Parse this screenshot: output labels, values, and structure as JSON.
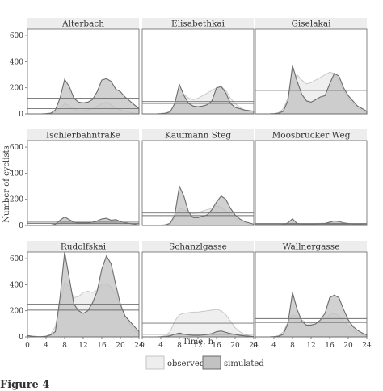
{
  "figure": {
    "ylabel": "Number of cyclists",
    "xlabel": "Time, h",
    "caption_fragment": "Figure 4"
  },
  "legend": {
    "observed_label": "observed",
    "simulated_label": "simulated"
  },
  "colors": {
    "observed_fill": "#eeeeee",
    "observed_stroke": "#c4c4c4",
    "simulated_fill": "#c2c2c2",
    "simulated_stroke": "#6b6b6b",
    "mean_line": "#707070",
    "panel_bg": "#ffffff",
    "axis": "#666666"
  },
  "chart_data": {
    "type": "area",
    "layout": "3x3 small multiples, shared axes",
    "x_ticks": [
      0,
      4,
      8,
      12,
      16,
      20,
      24
    ],
    "y_ticks": [
      0,
      200,
      400,
      600
    ],
    "xlim": [
      0,
      24
    ],
    "ylim": [
      0,
      650
    ],
    "series_names": [
      "observed",
      "simulated"
    ],
    "legend_position": "bottom-center",
    "grid": false,
    "panels": [
      {
        "title": "Alterbach",
        "x": [
          0,
          1,
          2,
          3,
          4,
          5,
          6,
          7,
          8,
          9,
          10,
          11,
          12,
          13,
          14,
          15,
          16,
          17,
          18,
          19,
          20,
          21,
          22,
          23,
          24
        ],
        "observed": [
          0,
          0,
          0,
          0,
          2,
          5,
          15,
          40,
          80,
          60,
          35,
          25,
          25,
          30,
          40,
          60,
          80,
          90,
          70,
          45,
          30,
          20,
          12,
          6,
          2
        ],
        "simulated": [
          0,
          0,
          0,
          0,
          2,
          5,
          30,
          120,
          265,
          210,
          120,
          90,
          85,
          90,
          110,
          170,
          260,
          270,
          250,
          190,
          170,
          130,
          100,
          70,
          40
        ],
        "mean_observed": 40,
        "mean_simulated": 120
      },
      {
        "title": "Elisabethkai",
        "x": [
          0,
          1,
          2,
          3,
          4,
          5,
          6,
          7,
          8,
          9,
          10,
          11,
          12,
          13,
          14,
          15,
          16,
          17,
          18,
          19,
          20,
          21,
          22,
          23,
          24
        ],
        "observed": [
          0,
          0,
          0,
          0,
          2,
          5,
          20,
          60,
          130,
          150,
          120,
          110,
          120,
          140,
          160,
          180,
          200,
          210,
          180,
          120,
          80,
          50,
          30,
          15,
          5
        ],
        "simulated": [
          0,
          0,
          0,
          0,
          2,
          5,
          15,
          80,
          225,
          140,
          80,
          60,
          55,
          60,
          70,
          100,
          200,
          210,
          160,
          80,
          50,
          40,
          30,
          25,
          20
        ],
        "mean_observed": 80,
        "mean_simulated": 95
      },
      {
        "title": "Giselakai",
        "x": [
          0,
          1,
          2,
          3,
          4,
          5,
          6,
          7,
          8,
          9,
          10,
          11,
          12,
          13,
          14,
          15,
          16,
          17,
          18,
          19,
          20,
          21,
          22,
          23,
          24
        ],
        "observed": [
          0,
          0,
          0,
          0,
          3,
          10,
          40,
          120,
          260,
          300,
          260,
          230,
          240,
          260,
          280,
          300,
          320,
          310,
          250,
          180,
          120,
          80,
          50,
          25,
          10
        ],
        "simulated": [
          0,
          0,
          0,
          0,
          2,
          5,
          20,
          100,
          370,
          250,
          150,
          100,
          90,
          110,
          130,
          140,
          230,
          310,
          290,
          200,
          140,
          100,
          60,
          40,
          20
        ],
        "mean_observed": 180,
        "mean_simulated": 145
      },
      {
        "title": "Ischlerbahntraße",
        "x": [
          0,
          1,
          2,
          3,
          4,
          5,
          6,
          7,
          8,
          9,
          10,
          11,
          12,
          13,
          14,
          15,
          16,
          17,
          18,
          19,
          20,
          21,
          22,
          23,
          24
        ],
        "observed": [
          0,
          0,
          0,
          0,
          1,
          3,
          8,
          15,
          30,
          25,
          20,
          18,
          18,
          20,
          22,
          25,
          30,
          28,
          24,
          18,
          12,
          8,
          5,
          3,
          1
        ],
        "simulated": [
          0,
          0,
          0,
          0,
          1,
          3,
          10,
          40,
          65,
          45,
          25,
          20,
          20,
          20,
          25,
          35,
          50,
          55,
          40,
          45,
          30,
          20,
          15,
          10,
          5
        ],
        "mean_observed": 15,
        "mean_simulated": 25
      },
      {
        "title": "Kaufmann Steg",
        "x": [
          0,
          1,
          2,
          3,
          4,
          5,
          6,
          7,
          8,
          9,
          10,
          11,
          12,
          13,
          14,
          15,
          16,
          17,
          18,
          19,
          20,
          21,
          22,
          23,
          24
        ],
        "observed": [
          0,
          0,
          0,
          0,
          2,
          5,
          20,
          60,
          130,
          120,
          100,
          90,
          95,
          110,
          120,
          130,
          150,
          140,
          110,
          80,
          55,
          35,
          20,
          10,
          4
        ],
        "simulated": [
          0,
          0,
          0,
          0,
          2,
          5,
          15,
          80,
          300,
          220,
          100,
          60,
          60,
          70,
          80,
          120,
          180,
          225,
          200,
          130,
          80,
          50,
          30,
          20,
          10
        ],
        "mean_observed": 75,
        "mean_simulated": 95
      },
      {
        "title": "Moosbrücker Weg",
        "x": [
          0,
          1,
          2,
          3,
          4,
          5,
          6,
          7,
          8,
          9,
          10,
          11,
          12,
          13,
          14,
          15,
          16,
          17,
          18,
          19,
          20,
          21,
          22,
          23,
          24
        ],
        "observed": [
          0,
          0,
          0,
          0,
          1,
          2,
          5,
          10,
          20,
          15,
          12,
          12,
          12,
          14,
          16,
          18,
          22,
          20,
          16,
          12,
          8,
          5,
          3,
          2,
          1
        ],
        "simulated": [
          0,
          0,
          0,
          0,
          1,
          2,
          5,
          20,
          50,
          15,
          10,
          8,
          8,
          10,
          12,
          15,
          25,
          35,
          30,
          20,
          15,
          10,
          8,
          5,
          3
        ],
        "mean_observed": 10,
        "mean_simulated": 15
      },
      {
        "title": "Rudolfskai",
        "x": [
          0,
          1,
          2,
          3,
          4,
          5,
          6,
          7,
          8,
          9,
          10,
          11,
          12,
          13,
          14,
          15,
          16,
          17,
          18,
          19,
          20,
          21,
          22,
          23,
          24
        ],
        "observed": [
          0,
          0,
          0,
          0,
          5,
          20,
          80,
          250,
          420,
          380,
          300,
          310,
          340,
          350,
          340,
          360,
          400,
          410,
          380,
          320,
          230,
          160,
          100,
          50,
          20
        ],
        "simulated": [
          10,
          5,
          3,
          2,
          5,
          15,
          40,
          300,
          650,
          450,
          250,
          200,
          180,
          200,
          260,
          350,
          520,
          620,
          560,
          400,
          250,
          160,
          120,
          80,
          40
        ],
        "mean_observed": 205,
        "mean_simulated": 250
      },
      {
        "title": "Schanzlgasse",
        "x": [
          0,
          1,
          2,
          3,
          4,
          5,
          6,
          7,
          8,
          9,
          10,
          11,
          12,
          13,
          14,
          15,
          16,
          17,
          18,
          19,
          20,
          21,
          22,
          23,
          24
        ],
        "observed": [
          0,
          0,
          0,
          0,
          2,
          10,
          40,
          120,
          170,
          180,
          185,
          190,
          190,
          195,
          200,
          205,
          210,
          200,
          170,
          120,
          70,
          40,
          20,
          10,
          4
        ],
        "simulated": [
          0,
          0,
          0,
          0,
          1,
          3,
          8,
          20,
          30,
          20,
          15,
          12,
          12,
          14,
          18,
          25,
          40,
          45,
          35,
          25,
          18,
          12,
          8,
          5,
          2
        ],
        "mean_observed": 105,
        "mean_simulated": 20
      },
      {
        "title": "Wallnergasse",
        "x": [
          0,
          1,
          2,
          3,
          4,
          5,
          6,
          7,
          8,
          9,
          10,
          11,
          12,
          13,
          14,
          15,
          16,
          17,
          18,
          19,
          20,
          21,
          22,
          23,
          24
        ],
        "observed": [
          0,
          0,
          0,
          0,
          2,
          10,
          40,
          110,
          170,
          160,
          130,
          110,
          105,
          110,
          120,
          140,
          170,
          180,
          160,
          120,
          80,
          50,
          30,
          15,
          5
        ],
        "simulated": [
          0,
          0,
          0,
          0,
          2,
          5,
          20,
          100,
          340,
          210,
          120,
          90,
          90,
          100,
          130,
          180,
          300,
          320,
          300,
          210,
          130,
          80,
          50,
          30,
          15
        ],
        "mean_observed": 110,
        "mean_simulated": 140
      }
    ]
  }
}
